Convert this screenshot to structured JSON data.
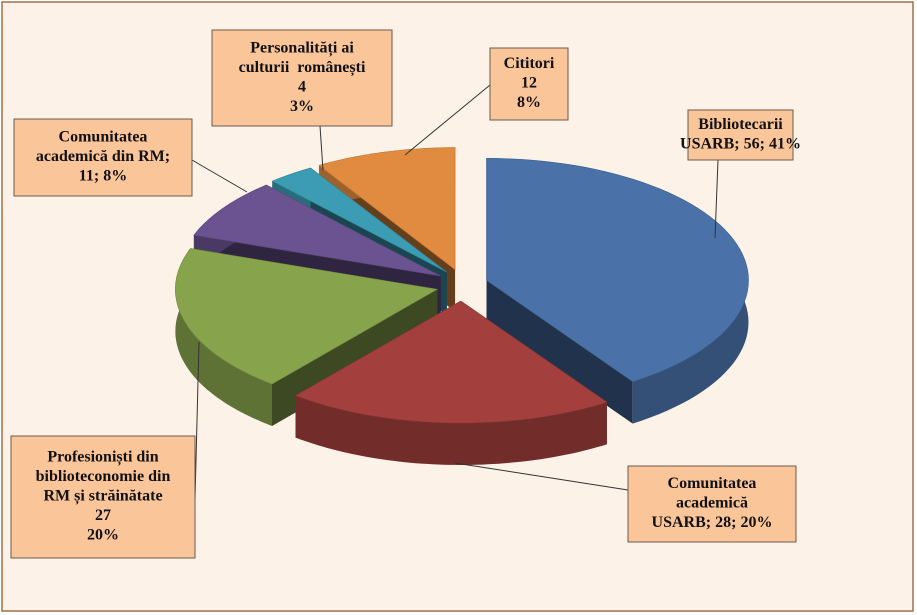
{
  "chart_data": {
    "type": "pie3d",
    "values": [
      56,
      28,
      27,
      11,
      4,
      12
    ],
    "value_labels": [
      [
        "Bibliotecarii",
        "USARB; 56; 41%"
      ],
      [
        "Comunitatea",
        "academică",
        "USARB; 28; 20%"
      ],
      [
        "Profesioniști din",
        "biblioteconomie din",
        "RM și străinătate",
        "27",
        "20%"
      ],
      [
        "Comunitatea",
        "academică din RM;",
        "11; 8%"
      ],
      [
        "Personalități ai",
        "culturii  românești",
        "4",
        "3%"
      ],
      [
        "Cititori",
        "12",
        "8%"
      ]
    ],
    "colors": [
      "#4a72a8",
      "#a3403d",
      "#87a34b",
      "#6b5290",
      "#3b9cb3",
      "#e08b3f"
    ]
  }
}
